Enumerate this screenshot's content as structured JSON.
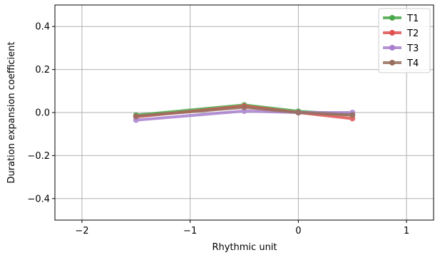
{
  "chart_data": {
    "type": "line",
    "title": "",
    "xlabel": "Rhythmic unit",
    "ylabel": "Duration expansion coefficient",
    "xlim": [
      -2.25,
      1.25
    ],
    "ylim": [
      -0.5,
      0.5
    ],
    "xticks": [
      -2,
      -1,
      0,
      1
    ],
    "xtick_labels": [
      "−2",
      "−1",
      "0",
      "1"
    ],
    "yticks": [
      -0.4,
      -0.2,
      0.0,
      0.2,
      0.4
    ],
    "ytick_labels": [
      "−0.4",
      "−0.2",
      "0.0",
      "0.2",
      "0.4"
    ],
    "grid": true,
    "legend_position": "top-right",
    "x": [
      -1.5,
      -0.5,
      0,
      0.5
    ],
    "series": [
      {
        "name": "T1",
        "color": "#4aa84a",
        "values": [
          -0.012,
          0.035,
          0.006,
          -0.01
        ]
      },
      {
        "name": "T2",
        "color": "#e05252",
        "values": [
          -0.02,
          0.03,
          0.0,
          -0.028
        ]
      },
      {
        "name": "T3",
        "color": "#a77fce",
        "values": [
          -0.035,
          0.007,
          0.0,
          0.0
        ]
      },
      {
        "name": "T4",
        "color": "#9a6e5e",
        "values": [
          -0.017,
          0.024,
          0.0,
          -0.012
        ]
      }
    ]
  }
}
